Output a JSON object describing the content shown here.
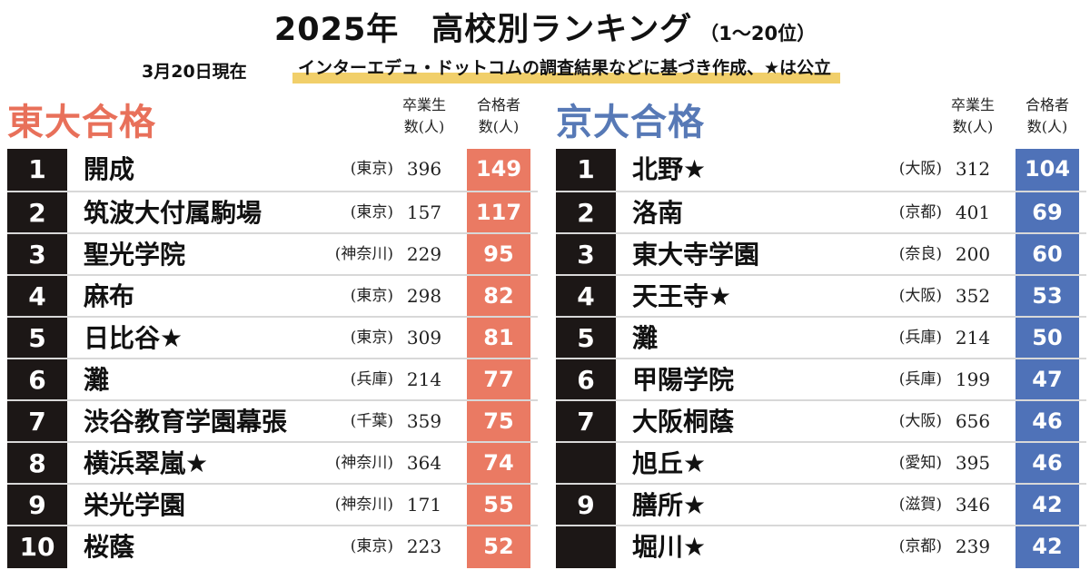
{
  "header": {
    "title": "2025年　高校別ランキング",
    "range": "（1～20位）",
    "date": "3月20日現在",
    "note": "インターエデュ・ドットコムの調査結果などに基づき作成、★は公立"
  },
  "colors": {
    "todai_accent": "#ea7a63",
    "kyodai_accent": "#4f72b8",
    "rank_bg": "#1c1716"
  },
  "todai": {
    "title": "東大合格",
    "col_grad": [
      "卒業生",
      "数(人)"
    ],
    "col_pass": [
      "合格者",
      "数(人)"
    ],
    "rows": [
      {
        "rank": "1",
        "name": "開成",
        "pref": "(東京)",
        "grads": "396",
        "passed": "149"
      },
      {
        "rank": "2",
        "name": "筑波大付属駒場",
        "pref": "(東京)",
        "grads": "157",
        "passed": "117"
      },
      {
        "rank": "3",
        "name": "聖光学院",
        "pref": "(神奈川)",
        "grads": "229",
        "passed": "95"
      },
      {
        "rank": "4",
        "name": "麻布",
        "pref": "(東京)",
        "grads": "298",
        "passed": "82"
      },
      {
        "rank": "5",
        "name": "日比谷★",
        "pref": "(東京)",
        "grads": "309",
        "passed": "81"
      },
      {
        "rank": "6",
        "name": "灘",
        "pref": "(兵庫)",
        "grads": "214",
        "passed": "77"
      },
      {
        "rank": "7",
        "name": "渋谷教育学園幕張",
        "pref": "(千葉)",
        "grads": "359",
        "passed": "75"
      },
      {
        "rank": "8",
        "name": "横浜翠嵐★",
        "pref": "(神奈川)",
        "grads": "364",
        "passed": "74"
      },
      {
        "rank": "9",
        "name": "栄光学園",
        "pref": "(神奈川)",
        "grads": "171",
        "passed": "55"
      },
      {
        "rank": "10",
        "name": "桜蔭",
        "pref": "(東京)",
        "grads": "223",
        "passed": "52"
      }
    ]
  },
  "kyodai": {
    "title": "京大合格",
    "col_grad": [
      "卒業生",
      "数(人)"
    ],
    "col_pass": [
      "合格者",
      "数(人)"
    ],
    "rows": [
      {
        "rank": "1",
        "name": "北野★",
        "pref": "(大阪)",
        "grads": "312",
        "passed": "104"
      },
      {
        "rank": "2",
        "name": "洛南",
        "pref": "(京都)",
        "grads": "401",
        "passed": "69"
      },
      {
        "rank": "3",
        "name": "東大寺学園",
        "pref": "(奈良)",
        "grads": "200",
        "passed": "60"
      },
      {
        "rank": "4",
        "name": "天王寺★",
        "pref": "(大阪)",
        "grads": "352",
        "passed": "53"
      },
      {
        "rank": "5",
        "name": "灘",
        "pref": "(兵庫)",
        "grads": "214",
        "passed": "50"
      },
      {
        "rank": "6",
        "name": "甲陽学院",
        "pref": "(兵庫)",
        "grads": "199",
        "passed": "47"
      },
      {
        "rank": "7",
        "name": "大阪桐蔭",
        "pref": "(大阪)",
        "grads": "656",
        "passed": "46"
      },
      {
        "rank": "",
        "name": "旭丘★",
        "pref": "(愛知)",
        "grads": "395",
        "passed": "46"
      },
      {
        "rank": "9",
        "name": "膳所★",
        "pref": "(滋賀)",
        "grads": "346",
        "passed": "42"
      },
      {
        "rank": "",
        "name": "堀川★",
        "pref": "(京都)",
        "grads": "239",
        "passed": "42"
      }
    ]
  }
}
